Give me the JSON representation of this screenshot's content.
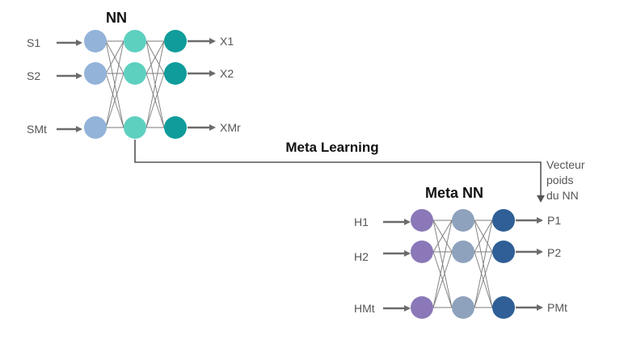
{
  "nn": {
    "title": "NN",
    "inputs": [
      "S1",
      "S2",
      "SMt"
    ],
    "outputs": [
      "X1",
      "X2",
      "XMr"
    ],
    "colors": {
      "input": "#93b3d9",
      "hidden": "#5ed0c0",
      "output": "#0f9c9b"
    }
  },
  "link": {
    "label": "Meta Learning",
    "note_lines": [
      "Vecteur",
      "poids",
      "du NN"
    ]
  },
  "meta_nn": {
    "title": "Meta NN",
    "inputs": [
      "H1",
      "H2",
      "HMt"
    ],
    "outputs": [
      "P1",
      "P2",
      "PMt"
    ],
    "colors": {
      "input": "#8a78b8",
      "hidden": "#8ea2bd",
      "output": "#2f5f96"
    }
  }
}
